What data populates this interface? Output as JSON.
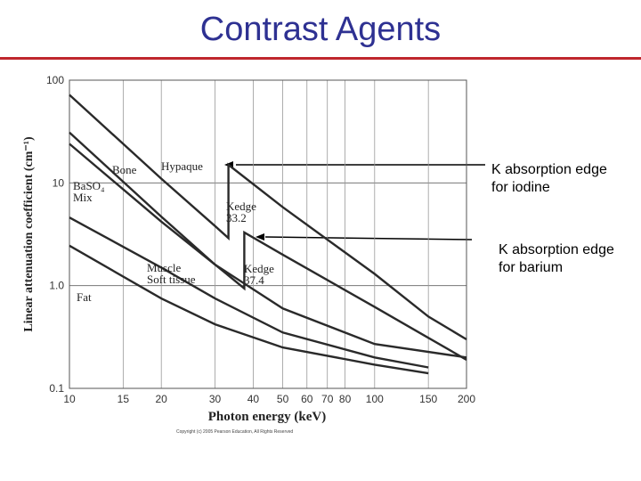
{
  "chart_data": {
    "type": "line",
    "title": "Contrast Agents",
    "x_label": "Photon energy (keV)",
    "y_label": "Linear attenuation coefficient (cm⁻¹)",
    "x_log": true,
    "y_log": true,
    "grid": true,
    "xlim": [
      10,
      200
    ],
    "ylim": [
      0.1,
      100
    ],
    "xticks": [
      10,
      15,
      20,
      30,
      40,
      50,
      60,
      70,
      80,
      100,
      150,
      200
    ],
    "yticks": [
      100,
      10,
      {
        "value": 1,
        "label": "1.0"
      },
      0.1
    ],
    "color": "#2a2a2a",
    "series": [
      {
        "name": "Hypaque",
        "x": [
          10,
          20,
          30,
          33.2,
          33.2,
          50,
          100,
          150,
          200
        ],
        "values": [
          72,
          11,
          3.8,
          2.9,
          15,
          5.8,
          1.3,
          0.5,
          0.3
        ]
      },
      {
        "name": "BaSO₄\nMix",
        "x": [
          10,
          20,
          30,
          37.4,
          37.4,
          50,
          100,
          150,
          200
        ],
        "values": [
          31,
          4.7,
          1.6,
          0.94,
          3.3,
          2.0,
          0.62,
          0.31,
          0.19
        ]
      },
      {
        "name": "Bone",
        "x": [
          10,
          20,
          30,
          50,
          100,
          200
        ],
        "values": [
          24,
          4.2,
          1.6,
          0.6,
          0.27,
          0.2
        ]
      },
      {
        "name": "Muscle\nSoft tissue",
        "x": [
          10,
          20,
          30,
          50,
          100,
          150
        ],
        "values": [
          4.6,
          1.5,
          0.75,
          0.35,
          0.2,
          0.16
        ]
      },
      {
        "name": "Fat",
        "x": [
          10,
          20,
          30,
          50,
          100,
          150
        ],
        "values": [
          2.45,
          0.75,
          0.42,
          0.25,
          0.17,
          0.14
        ]
      }
    ],
    "annotations": [
      "Kedge\n33.2",
      "Kedge\n37.4",
      "K absorption edge\nfor iodine",
      "K absorption edge\nfor barium"
    ],
    "footnote": "Copyright (c) 2005 Pearson Education, All Rights Reserved"
  }
}
